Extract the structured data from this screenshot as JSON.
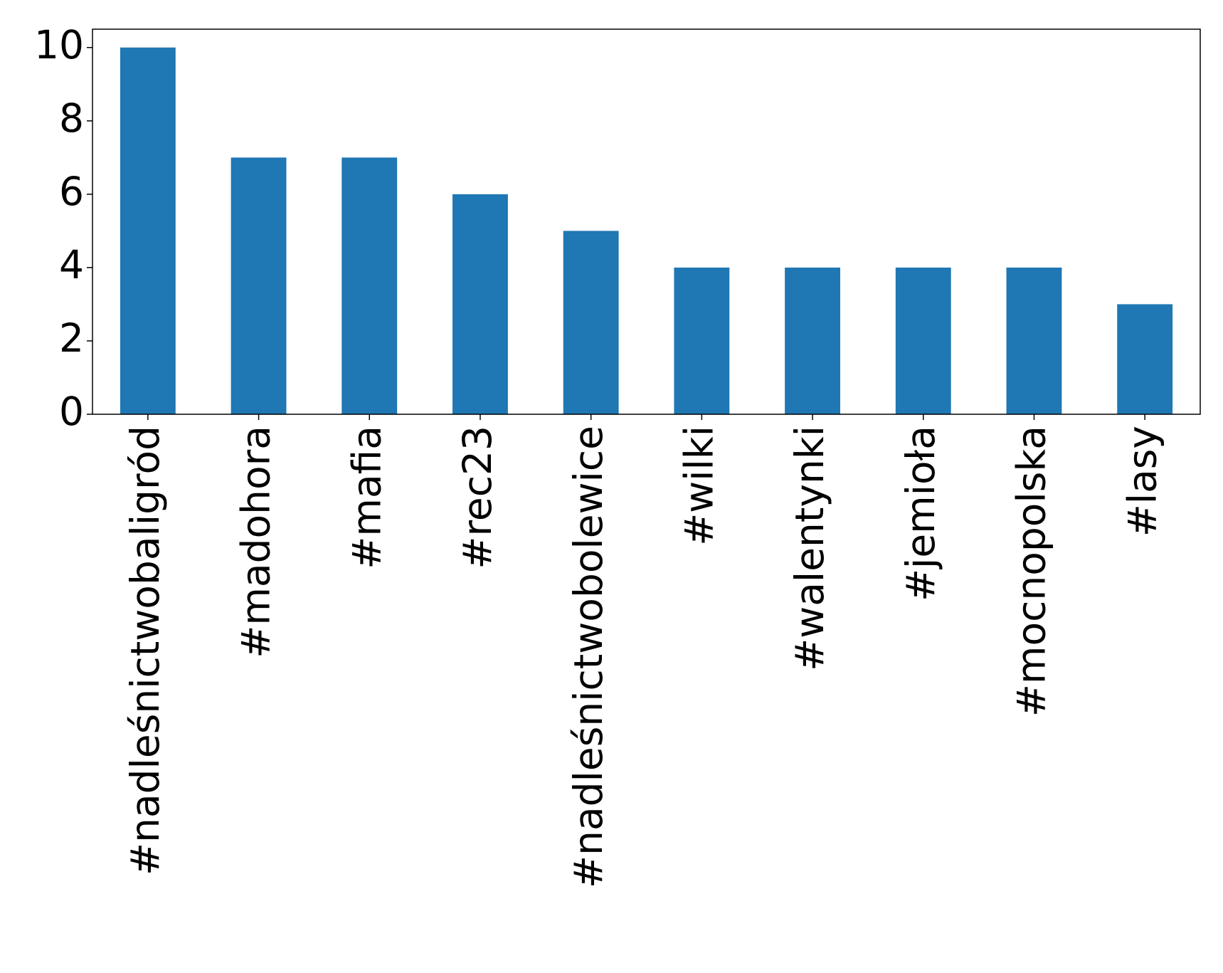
{
  "chart_data": {
    "type": "bar",
    "categories": [
      "#nadleśnictwobaligród",
      "#madohora",
      "#mafia",
      "#rec23",
      "#nadleśnictwobolewice",
      "#wilki",
      "#walentynki",
      "#jemioła",
      "#mocnopolska",
      "#lasy"
    ],
    "values": [
      10,
      7,
      7,
      6,
      5,
      4,
      4,
      4,
      4,
      3
    ],
    "color": "#1f77b4",
    "ylim": [
      0,
      10.5
    ],
    "yticks": [
      0,
      2,
      4,
      6,
      8,
      10
    ],
    "grid": false
  }
}
